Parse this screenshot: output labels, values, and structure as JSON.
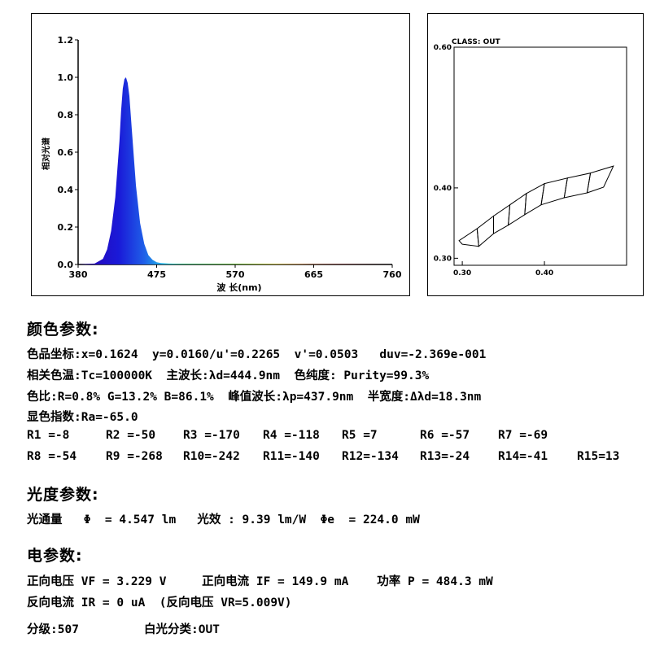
{
  "chart_data": [
    {
      "type": "line",
      "xlabel": "波 长(nm)",
      "ylabel": "相对光谱",
      "xlim": [
        380,
        760
      ],
      "ylim": [
        0,
        1.2
      ],
      "x_ticks": [
        "380",
        "475",
        "570",
        "665",
        "760"
      ],
      "y_ticks": [
        "0.0",
        "0.2",
        "0.4",
        "0.6",
        "0.8",
        "1.0",
        "1.2"
      ],
      "series": [
        {
          "x": [
            380,
            400,
            410,
            415,
            420,
            425,
            430,
            432,
            434,
            436,
            437.9,
            440,
            442,
            445,
            450,
            455,
            460,
            465,
            470,
            475,
            480,
            490,
            500,
            520,
            550,
            600,
            650,
            700,
            760
          ],
          "y": [
            0,
            0.005,
            0.03,
            0.08,
            0.18,
            0.36,
            0.66,
            0.82,
            0.94,
            0.99,
            1.0,
            0.97,
            0.9,
            0.72,
            0.42,
            0.22,
            0.11,
            0.05,
            0.025,
            0.012,
            0.008,
            0.005,
            0.004,
            0.003,
            0.003,
            0.003,
            0.002,
            0.001,
            0
          ]
        }
      ]
    },
    {
      "type": "scatter",
      "title": "CLASS: OUT",
      "xlim": [
        0.29,
        0.5
      ],
      "ylim": [
        0.29,
        0.6
      ],
      "x_ticks": [
        "0.30",
        "0.40"
      ],
      "y_ticks": [
        "0.60",
        "0.40",
        "0.30"
      ],
      "bins": [
        [
          [
            0.3,
            0.32
          ],
          [
            0.32,
            0.317
          ],
          [
            0.318,
            0.342
          ],
          [
            0.296,
            0.325
          ]
        ],
        [
          [
            0.32,
            0.317
          ],
          [
            0.338,
            0.335
          ],
          [
            0.338,
            0.36
          ],
          [
            0.318,
            0.342
          ]
        ],
        [
          [
            0.338,
            0.335
          ],
          [
            0.356,
            0.347
          ],
          [
            0.358,
            0.376
          ],
          [
            0.338,
            0.36
          ]
        ],
        [
          [
            0.356,
            0.347
          ],
          [
            0.376,
            0.362
          ],
          [
            0.378,
            0.392
          ],
          [
            0.358,
            0.376
          ]
        ],
        [
          [
            0.376,
            0.362
          ],
          [
            0.396,
            0.376
          ],
          [
            0.4,
            0.406
          ],
          [
            0.378,
            0.392
          ]
        ],
        [
          [
            0.396,
            0.376
          ],
          [
            0.424,
            0.386
          ],
          [
            0.428,
            0.414
          ],
          [
            0.4,
            0.406
          ]
        ],
        [
          [
            0.424,
            0.386
          ],
          [
            0.452,
            0.393
          ],
          [
            0.456,
            0.421
          ],
          [
            0.428,
            0.414
          ]
        ],
        [
          [
            0.452,
            0.393
          ],
          [
            0.472,
            0.401
          ],
          [
            0.484,
            0.431
          ],
          [
            0.456,
            0.421
          ]
        ]
      ]
    }
  ],
  "sections": {
    "color": {
      "title": "颜色参数:",
      "chromaticity": "色品坐标:x=0.1624  y=0.0160/u'=0.2265  v'=0.0503   duv=-2.369e-001",
      "cct": "相关色温:Tc=100000K  主波长:λd=444.9nm  色纯度: Purity=99.3%",
      "ratio": "色比:R=0.8% G=13.2% B=86.1%  峰值波长:λp=437.9nm  半宽度:Δλd=18.3nm",
      "ra": "显色指数:Ra=-65.0",
      "r_row1": [
        "R1 =-8",
        "R2 =-50",
        "R3 =-170",
        "R4 =-118",
        "R5 =7",
        "R6 =-57",
        "R7 =-69"
      ],
      "r_row2": [
        "R8 =-54",
        "R9 =-268",
        "R10=-242",
        "R11=-140",
        "R12=-134",
        "R13=-24",
        "R14=-41",
        "R15=13"
      ]
    },
    "photometric": {
      "title": "光度参数:",
      "flux": "光通量   Φ  = 4.547 lm   光效 : 9.39 lm/W  Φe  = 224.0 mW"
    },
    "electrical": {
      "title": "电参数:",
      "forward": "正向电压 VF = 3.229 V     正向电流 IF = 149.9 mA    功率 P = 484.3 mW",
      "reverse": "反向电流 IR = 0 uA  (反向电压 VR=5.009V)"
    },
    "grade": {
      "bin": "分级:507",
      "white_class": "白光分类:OUT"
    }
  }
}
